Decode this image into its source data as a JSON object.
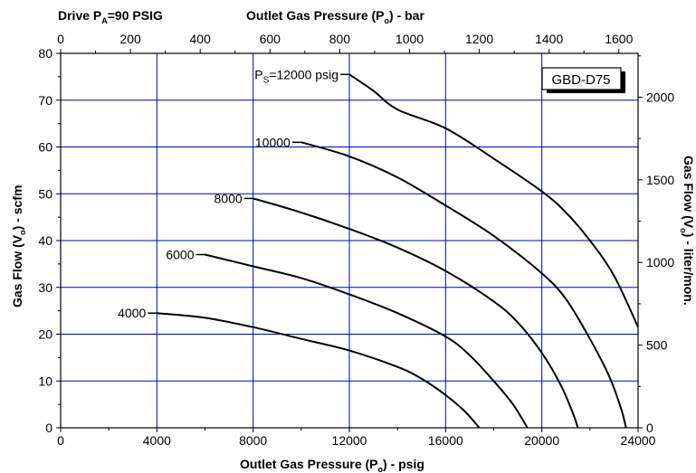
{
  "header": {
    "drive_prefix": "Drive P",
    "drive_sub": "A",
    "drive_suffix": "=90 PSIG"
  },
  "model_label": "GBD-D75",
  "chart_data": {
    "type": "line",
    "title": "",
    "x_bottom": {
      "label_main": "Outlet Gas Pressure (P",
      "label_sub": "o",
      "label_end": ") - psig",
      "range": [
        0,
        24000
      ],
      "ticks": [
        0,
        4000,
        8000,
        12000,
        16000,
        20000,
        24000
      ]
    },
    "x_top": {
      "label_main": "Outlet Gas Pressure (P",
      "label_sub": "o",
      "label_end": ") - bar",
      "range": [
        0,
        1655
      ],
      "ticks": [
        0,
        200,
        400,
        600,
        800,
        1000,
        1200,
        1400,
        1600
      ]
    },
    "y_left": {
      "label_main": "Gas Flow (V",
      "label_sub": "o",
      "label_end": ") - scfm",
      "range": [
        0,
        80
      ],
      "ticks": [
        0,
        10,
        20,
        30,
        40,
        50,
        60,
        70,
        80
      ]
    },
    "y_right": {
      "label_main": "Gas Flow (V",
      "label_sub": "o",
      "label_end": ") - liter/mon.",
      "range": [
        0,
        2265
      ],
      "ticks": [
        0,
        500,
        1000,
        1500,
        2000
      ]
    },
    "grid": true,
    "series": [
      {
        "label": "4000",
        "points": [
          [
            4000,
            24.5
          ],
          [
            6000,
            23.5
          ],
          [
            8000,
            21.5
          ],
          [
            10000,
            19
          ],
          [
            12000,
            16.5
          ],
          [
            14000,
            13
          ],
          [
            15000,
            10.5
          ],
          [
            16000,
            7
          ],
          [
            16800,
            3.5
          ],
          [
            17400,
            0
          ]
        ]
      },
      {
        "label": "6000",
        "points": [
          [
            6000,
            37
          ],
          [
            8000,
            34.5
          ],
          [
            10000,
            32
          ],
          [
            12000,
            28.5
          ],
          [
            14000,
            24.5
          ],
          [
            16000,
            19.5
          ],
          [
            17000,
            15.5
          ],
          [
            18000,
            10
          ],
          [
            18800,
            5
          ],
          [
            19400,
            0
          ]
        ]
      },
      {
        "label": "8000",
        "points": [
          [
            8000,
            49
          ],
          [
            10000,
            46
          ],
          [
            12000,
            42.5
          ],
          [
            14000,
            38.5
          ],
          [
            16000,
            33.5
          ],
          [
            18000,
            27
          ],
          [
            19000,
            22.5
          ],
          [
            20000,
            16
          ],
          [
            20800,
            9
          ],
          [
            21300,
            3
          ],
          [
            21500,
            0
          ]
        ]
      },
      {
        "label": "10000",
        "points": [
          [
            10000,
            61
          ],
          [
            12000,
            58
          ],
          [
            14000,
            53.5
          ],
          [
            16000,
            47.5
          ],
          [
            18000,
            41
          ],
          [
            20000,
            33
          ],
          [
            21000,
            27.5
          ],
          [
            22000,
            19
          ],
          [
            22800,
            11
          ],
          [
            23300,
            4
          ],
          [
            23500,
            0
          ]
        ]
      },
      {
        "label_prefix": "P",
        "label_sub": "S",
        "label": "=12000 psig",
        "points": [
          [
            12000,
            75.5
          ],
          [
            13000,
            72
          ],
          [
            14000,
            68
          ],
          [
            16000,
            64
          ],
          [
            18000,
            57.5
          ],
          [
            20000,
            50.5
          ],
          [
            21000,
            46
          ],
          [
            22000,
            40
          ],
          [
            23000,
            32.5
          ],
          [
            24000,
            21.5
          ]
        ]
      }
    ]
  }
}
